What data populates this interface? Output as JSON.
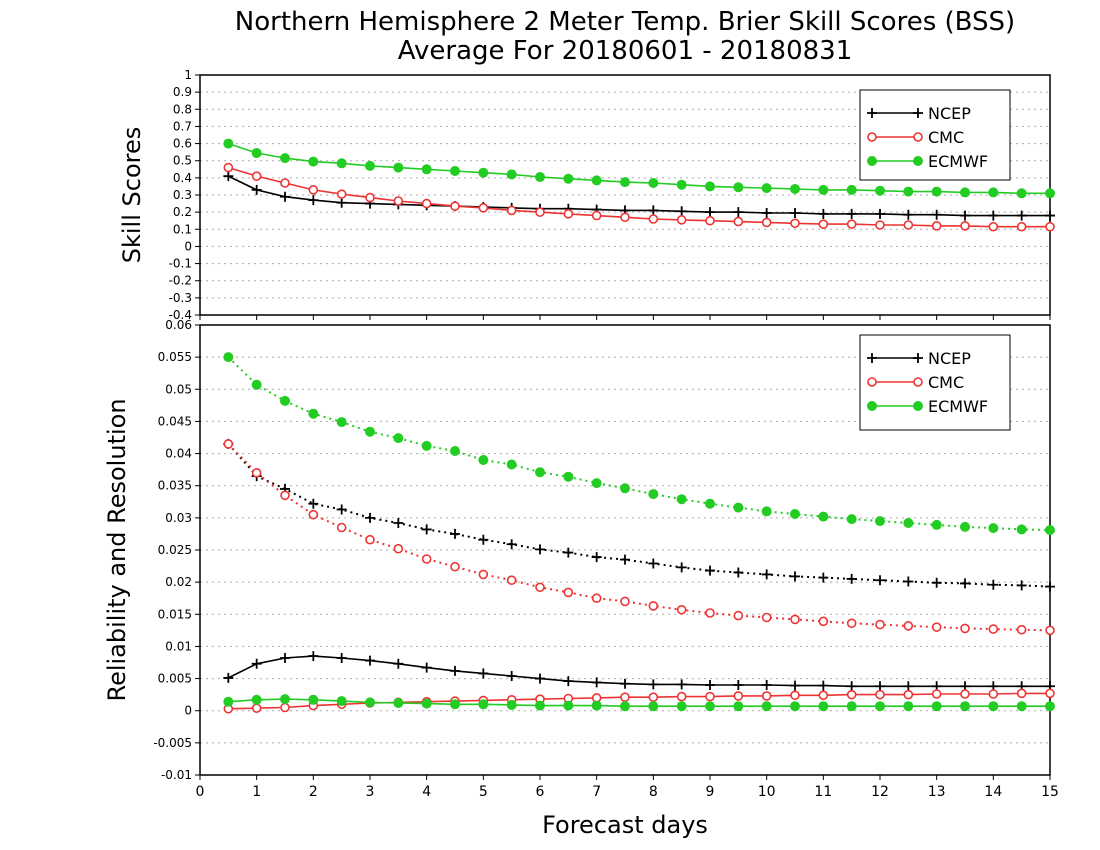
{
  "title_line1": "Northern Hemisphere 2 Meter Temp. Brier Skill Scores (BSS)",
  "title_line2": "Average For 20180601 - 20180831",
  "xlabel": "Forecast days",
  "colors": {
    "NCEP": "#000000",
    "CMC": "#ee3333",
    "ECMWF": "#22cc22"
  },
  "chart_data": [
    {
      "type": "line",
      "panel": "top",
      "ylabel": "Skill Scores",
      "xlim": [
        0,
        15
      ],
      "ylim": [
        -0.4,
        1
      ],
      "xticks": [
        0,
        1,
        2,
        3,
        4,
        5,
        6,
        7,
        8,
        9,
        10,
        11,
        12,
        13,
        14,
        15
      ],
      "yticks": [
        -0.4,
        -0.3,
        -0.2,
        -0.1,
        0,
        0.1,
        0.2,
        0.3,
        0.4,
        0.5,
        0.6,
        0.7,
        0.8,
        0.9,
        1
      ],
      "ytick_labels": [
        "-0.4",
        "-0.3",
        "-0.2",
        "-0.1",
        "0",
        "0.1",
        "0.2",
        "0.3",
        "0.4",
        "0.5",
        "0.6",
        "0.7",
        "0.8",
        "0.9",
        "1"
      ],
      "grid": true,
      "legend_position": "top-right",
      "x": [
        0.5,
        1,
        1.5,
        2,
        2.5,
        3,
        3.5,
        4,
        4.5,
        5,
        5.5,
        6,
        6.5,
        7,
        7.5,
        8,
        8.5,
        9,
        9.5,
        10,
        10.5,
        11,
        11.5,
        12,
        12.5,
        13,
        13.5,
        14,
        14.5,
        15
      ],
      "series": [
        {
          "name": "NCEP",
          "marker": "plus",
          "style": "solid",
          "values": [
            0.41,
            0.33,
            0.29,
            0.27,
            0.255,
            0.25,
            0.245,
            0.24,
            0.235,
            0.23,
            0.225,
            0.22,
            0.22,
            0.215,
            0.21,
            0.21,
            0.205,
            0.2,
            0.2,
            0.195,
            0.195,
            0.19,
            0.19,
            0.19,
            0.185,
            0.185,
            0.18,
            0.18,
            0.18,
            0.18
          ]
        },
        {
          "name": "CMC",
          "marker": "circle-open",
          "style": "solid",
          "values": [
            0.46,
            0.41,
            0.37,
            0.33,
            0.305,
            0.285,
            0.265,
            0.25,
            0.235,
            0.225,
            0.21,
            0.2,
            0.19,
            0.18,
            0.17,
            0.16,
            0.155,
            0.15,
            0.145,
            0.14,
            0.135,
            0.13,
            0.13,
            0.125,
            0.125,
            0.12,
            0.12,
            0.115,
            0.115,
            0.115
          ]
        },
        {
          "name": "ECMWF",
          "marker": "circle-filled",
          "style": "solid",
          "values": [
            0.6,
            0.545,
            0.515,
            0.495,
            0.485,
            0.47,
            0.46,
            0.45,
            0.44,
            0.43,
            0.42,
            0.405,
            0.395,
            0.385,
            0.375,
            0.37,
            0.36,
            0.35,
            0.345,
            0.34,
            0.335,
            0.33,
            0.33,
            0.325,
            0.32,
            0.32,
            0.315,
            0.315,
            0.31,
            0.31
          ]
        }
      ]
    },
    {
      "type": "line",
      "panel": "bottom",
      "ylabel": "Reliability and Resolution",
      "xlim": [
        0,
        15
      ],
      "ylim": [
        -0.01,
        0.06
      ],
      "xticks": [
        0,
        1,
        2,
        3,
        4,
        5,
        6,
        7,
        8,
        9,
        10,
        11,
        12,
        13,
        14,
        15
      ],
      "yticks": [
        -0.01,
        -0.005,
        0,
        0.005,
        0.01,
        0.015,
        0.02,
        0.025,
        0.03,
        0.035,
        0.04,
        0.045,
        0.05,
        0.055,
        0.06
      ],
      "ytick_labels": [
        "-0.01",
        "-0.005",
        "0",
        "0.005",
        "0.01",
        "0.015",
        "0.02",
        "0.025",
        "0.03",
        "0.035",
        "0.04",
        "0.045",
        "0.05",
        "0.055",
        "0.06"
      ],
      "grid": true,
      "legend_position": "top-right",
      "x": [
        0.5,
        1,
        1.5,
        2,
        2.5,
        3,
        3.5,
        4,
        4.5,
        5,
        5.5,
        6,
        6.5,
        7,
        7.5,
        8,
        8.5,
        9,
        9.5,
        10,
        10.5,
        11,
        11.5,
        12,
        12.5,
        13,
        13.5,
        14,
        14.5,
        15
      ],
      "series": [
        {
          "name": "NCEP",
          "marker": "plus",
          "style": "dotted",
          "values": [
            0.0415,
            0.0365,
            0.0345,
            0.0322,
            0.0313,
            0.03,
            0.0292,
            0.0282,
            0.0275,
            0.0266,
            0.0259,
            0.0251,
            0.0246,
            0.0239,
            0.0235,
            0.0229,
            0.0223,
            0.0218,
            0.0215,
            0.0212,
            0.0209,
            0.0207,
            0.0205,
            0.0203,
            0.0201,
            0.0199,
            0.0198,
            0.0196,
            0.0195,
            0.0193
          ]
        },
        {
          "name": "CMC",
          "marker": "circle-open",
          "style": "dotted",
          "values": [
            0.0415,
            0.037,
            0.0335,
            0.0305,
            0.0285,
            0.0266,
            0.0252,
            0.0236,
            0.0224,
            0.0212,
            0.0203,
            0.0192,
            0.0184,
            0.0175,
            0.017,
            0.0163,
            0.0157,
            0.0152,
            0.0148,
            0.0145,
            0.0142,
            0.0139,
            0.0136,
            0.0134,
            0.0132,
            0.013,
            0.0128,
            0.0127,
            0.0126,
            0.0125
          ]
        },
        {
          "name": "ECMWF",
          "marker": "circle-filled",
          "style": "dotted",
          "values": [
            0.055,
            0.0507,
            0.0482,
            0.0462,
            0.0449,
            0.0434,
            0.0424,
            0.0412,
            0.0404,
            0.039,
            0.0383,
            0.0371,
            0.0364,
            0.0354,
            0.0346,
            0.0337,
            0.0329,
            0.0322,
            0.0316,
            0.031,
            0.0306,
            0.0302,
            0.0298,
            0.0295,
            0.0292,
            0.0289,
            0.0286,
            0.0284,
            0.0282,
            0.0281
          ]
        },
        {
          "name": "NCEP",
          "marker": "plus",
          "style": "solid",
          "values": [
            0.0051,
            0.0073,
            0.0082,
            0.0085,
            0.0082,
            0.0078,
            0.0073,
            0.0067,
            0.0062,
            0.0058,
            0.0054,
            0.005,
            0.0046,
            0.0044,
            0.0042,
            0.0041,
            0.0041,
            0.004,
            0.004,
            0.004,
            0.0039,
            0.0039,
            0.0038,
            0.0038,
            0.0038,
            0.0038,
            0.0038,
            0.0038,
            0.0038,
            0.0038
          ]
        },
        {
          "name": "CMC",
          "marker": "circle-open",
          "style": "solid",
          "values": [
            0.0003,
            0.0004,
            0.0005,
            0.0008,
            0.001,
            0.0012,
            0.0013,
            0.0014,
            0.0015,
            0.0016,
            0.0017,
            0.0018,
            0.0019,
            0.002,
            0.0021,
            0.0021,
            0.0022,
            0.0022,
            0.0023,
            0.0023,
            0.0024,
            0.0024,
            0.0025,
            0.0025,
            0.0025,
            0.0026,
            0.0026,
            0.0026,
            0.0027,
            0.0027
          ]
        },
        {
          "name": "ECMWF",
          "marker": "circle-filled",
          "style": "solid",
          "values": [
            0.0014,
            0.0017,
            0.0018,
            0.0017,
            0.0015,
            0.0013,
            0.0012,
            0.0011,
            0.001,
            0.001,
            0.0009,
            0.0008,
            0.0008,
            0.0008,
            0.0007,
            0.0007,
            0.0007,
            0.0007,
            0.0007,
            0.0007,
            0.0007,
            0.0007,
            0.0007,
            0.0007,
            0.0007,
            0.0007,
            0.0007,
            0.0007,
            0.0007,
            0.0007
          ]
        }
      ],
      "legend": [
        "NCEP",
        "CMC",
        "ECMWF"
      ]
    }
  ]
}
